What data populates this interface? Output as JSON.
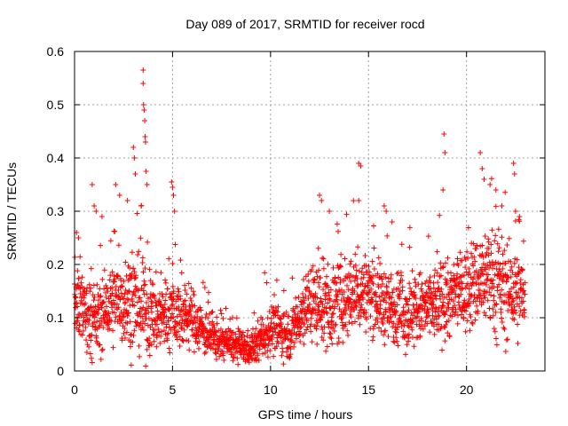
{
  "chart_data": {
    "type": "scatter",
    "title": "Day 089 of 2017, SRMTID for receiver rocd",
    "xlabel": "GPS time / hours",
    "ylabel": "SRMTID / TECUs",
    "xlim": [
      0,
      24
    ],
    "ylim": [
      0,
      0.6
    ],
    "x_ticks": [
      0,
      5,
      10,
      15,
      20
    ],
    "x_tick_labels": [
      "0",
      "5",
      "10",
      "15",
      "20"
    ],
    "y_ticks": [
      0,
      0.1,
      0.2,
      0.3,
      0.4,
      0.5,
      0.6
    ],
    "y_tick_labels": [
      "0",
      "0.1",
      "0.2",
      "0.3",
      "0.4",
      "0.5",
      "0.6"
    ],
    "grid": true,
    "legend": "none",
    "marker": "+",
    "color": "#ff0000",
    "data_x_range": [
      0,
      23
    ],
    "series": [
      {
        "name": "SRMTID",
        "sampling_hours": 0.01,
        "envelope": [
          {
            "t": 0.0,
            "mean": 0.12,
            "spread": 0.09
          },
          {
            "t": 1.0,
            "mean": 0.09,
            "spread": 0.08
          },
          {
            "t": 2.0,
            "mean": 0.13,
            "spread": 0.1
          },
          {
            "t": 3.0,
            "mean": 0.13,
            "spread": 0.12
          },
          {
            "t": 4.0,
            "mean": 0.1,
            "spread": 0.09
          },
          {
            "t": 5.0,
            "mean": 0.11,
            "spread": 0.09
          },
          {
            "t": 6.0,
            "mean": 0.1,
            "spread": 0.07
          },
          {
            "t": 7.0,
            "mean": 0.06,
            "spread": 0.05
          },
          {
            "t": 8.0,
            "mean": 0.05,
            "spread": 0.04
          },
          {
            "t": 9.0,
            "mean": 0.04,
            "spread": 0.04
          },
          {
            "t": 10.0,
            "mean": 0.08,
            "spread": 0.06
          },
          {
            "t": 11.0,
            "mean": 0.07,
            "spread": 0.06
          },
          {
            "t": 12.0,
            "mean": 0.13,
            "spread": 0.09
          },
          {
            "t": 13.0,
            "mean": 0.12,
            "spread": 0.1
          },
          {
            "t": 14.0,
            "mean": 0.14,
            "spread": 0.1
          },
          {
            "t": 15.0,
            "mean": 0.15,
            "spread": 0.09
          },
          {
            "t": 16.0,
            "mean": 0.12,
            "spread": 0.09
          },
          {
            "t": 17.0,
            "mean": 0.11,
            "spread": 0.09
          },
          {
            "t": 18.0,
            "mean": 0.12,
            "spread": 0.09
          },
          {
            "t": 19.0,
            "mean": 0.13,
            "spread": 0.09
          },
          {
            "t": 20.0,
            "mean": 0.15,
            "spread": 0.1
          },
          {
            "t": 21.0,
            "mean": 0.18,
            "spread": 0.12
          },
          {
            "t": 22.0,
            "mean": 0.15,
            "spread": 0.12
          },
          {
            "t": 23.0,
            "mean": 0.14,
            "spread": 0.1
          }
        ],
        "peaks": [
          {
            "x": 0.1,
            "y": 0.26
          },
          {
            "x": 0.2,
            "y": 0.25
          },
          {
            "x": 0.9,
            "y": 0.35
          },
          {
            "x": 1.0,
            "y": 0.31
          },
          {
            "x": 1.1,
            "y": 0.3
          },
          {
            "x": 1.4,
            "y": 0.29
          },
          {
            "x": 2.1,
            "y": 0.35
          },
          {
            "x": 2.3,
            "y": 0.33
          },
          {
            "x": 2.7,
            "y": 0.32
          },
          {
            "x": 3.0,
            "y": 0.42
          },
          {
            "x": 3.05,
            "y": 0.4
          },
          {
            "x": 3.1,
            "y": 0.37
          },
          {
            "x": 3.4,
            "y": 0.31
          },
          {
            "x": 3.5,
            "y": 0.565
          },
          {
            "x": 3.5,
            "y": 0.54
          },
          {
            "x": 3.52,
            "y": 0.5
          },
          {
            "x": 3.55,
            "y": 0.49
          },
          {
            "x": 3.58,
            "y": 0.47
          },
          {
            "x": 3.6,
            "y": 0.44
          },
          {
            "x": 3.62,
            "y": 0.43
          },
          {
            "x": 3.65,
            "y": 0.375
          },
          {
            "x": 3.7,
            "y": 0.35
          },
          {
            "x": 4.95,
            "y": 0.355
          },
          {
            "x": 5.0,
            "y": 0.345
          },
          {
            "x": 5.05,
            "y": 0.33
          },
          {
            "x": 5.1,
            "y": 0.3
          },
          {
            "x": 12.5,
            "y": 0.33
          },
          {
            "x": 12.6,
            "y": 0.32
          },
          {
            "x": 13.0,
            "y": 0.3
          },
          {
            "x": 14.5,
            "y": 0.39
          },
          {
            "x": 14.6,
            "y": 0.385
          },
          {
            "x": 14.5,
            "y": 0.32
          },
          {
            "x": 15.8,
            "y": 0.31
          },
          {
            "x": 15.9,
            "y": 0.3
          },
          {
            "x": 16.2,
            "y": 0.28
          },
          {
            "x": 18.85,
            "y": 0.445
          },
          {
            "x": 18.9,
            "y": 0.41
          },
          {
            "x": 18.8,
            "y": 0.34
          },
          {
            "x": 20.7,
            "y": 0.41
          },
          {
            "x": 20.8,
            "y": 0.38
          },
          {
            "x": 20.9,
            "y": 0.36
          },
          {
            "x": 21.2,
            "y": 0.35
          },
          {
            "x": 21.5,
            "y": 0.34
          },
          {
            "x": 21.8,
            "y": 0.31
          },
          {
            "x": 22.4,
            "y": 0.39
          },
          {
            "x": 22.45,
            "y": 0.37
          },
          {
            "x": 22.5,
            "y": 0.3
          },
          {
            "x": 22.7,
            "y": 0.29
          }
        ]
      }
    ]
  }
}
